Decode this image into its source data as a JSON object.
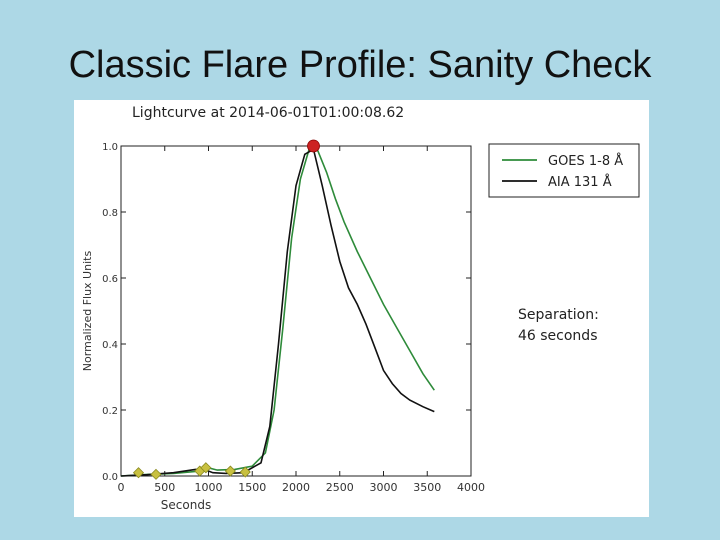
{
  "slide": {
    "title": "Classic Flare Profile: Sanity Check"
  },
  "annotation": {
    "line1": "Separation:",
    "line2": "46 seconds"
  },
  "chart_data": {
    "type": "line",
    "title": "Lightcurve at 2014-06-01T01:00:08.62",
    "xlabel": "Seconds",
    "ylabel": "Normalized Flux Units",
    "xlim": [
      0,
      4000
    ],
    "ylim": [
      0.0,
      1.0
    ],
    "xticks": [
      "0",
      "500",
      "1000",
      "1500",
      "2000",
      "2500",
      "3000",
      "3500",
      "4000"
    ],
    "yticks": [
      "0.0",
      "0.2",
      "0.4",
      "0.6",
      "0.8",
      "1.0"
    ],
    "legend_position": "top-right",
    "colors": {
      "goes": "#2e8b3a",
      "aia": "#111111",
      "peak_marker": "#cc2222",
      "diamond": "#c8c040"
    },
    "series": [
      {
        "name": "GOES 1-8 Å",
        "color": "#2e8b3a",
        "points": [
          [
            0,
            0.0
          ],
          [
            300,
            0.005
          ],
          [
            600,
            0.008
          ],
          [
            900,
            0.015
          ],
          [
            1000,
            0.025
          ],
          [
            1100,
            0.018
          ],
          [
            1300,
            0.02
          ],
          [
            1500,
            0.03
          ],
          [
            1650,
            0.07
          ],
          [
            1750,
            0.2
          ],
          [
            1850,
            0.45
          ],
          [
            1950,
            0.72
          ],
          [
            2050,
            0.9
          ],
          [
            2150,
            0.99
          ],
          [
            2250,
            0.985
          ],
          [
            2350,
            0.92
          ],
          [
            2450,
            0.84
          ],
          [
            2550,
            0.77
          ],
          [
            2700,
            0.68
          ],
          [
            2850,
            0.6
          ],
          [
            3000,
            0.52
          ],
          [
            3150,
            0.45
          ],
          [
            3300,
            0.38
          ],
          [
            3450,
            0.31
          ],
          [
            3580,
            0.26
          ]
        ]
      },
      {
        "name": "AIA 131 Å",
        "color": "#111111",
        "points": [
          [
            0,
            0.0
          ],
          [
            300,
            0.004
          ],
          [
            600,
            0.01
          ],
          [
            850,
            0.02
          ],
          [
            950,
            0.02
          ],
          [
            1050,
            0.01
          ],
          [
            1200,
            0.008
          ],
          [
            1400,
            0.01
          ],
          [
            1600,
            0.04
          ],
          [
            1700,
            0.15
          ],
          [
            1800,
            0.4
          ],
          [
            1900,
            0.68
          ],
          [
            2000,
            0.88
          ],
          [
            2100,
            0.975
          ],
          [
            2200,
            0.99
          ],
          [
            2300,
            0.88
          ],
          [
            2400,
            0.76
          ],
          [
            2500,
            0.65
          ],
          [
            2600,
            0.57
          ],
          [
            2700,
            0.52
          ],
          [
            2800,
            0.46
          ],
          [
            2900,
            0.39
          ],
          [
            3000,
            0.32
          ],
          [
            3100,
            0.28
          ],
          [
            3200,
            0.25
          ],
          [
            3300,
            0.23
          ],
          [
            3450,
            0.21
          ],
          [
            3580,
            0.195
          ]
        ]
      }
    ],
    "peak_marker": {
      "x": 2200,
      "y": 1.0
    },
    "diamond_markers": [
      [
        200,
        0.01
      ],
      [
        400,
        0.005
      ],
      [
        900,
        0.015
      ],
      [
        970,
        0.025
      ],
      [
        1250,
        0.015
      ],
      [
        1420,
        0.012
      ]
    ]
  }
}
